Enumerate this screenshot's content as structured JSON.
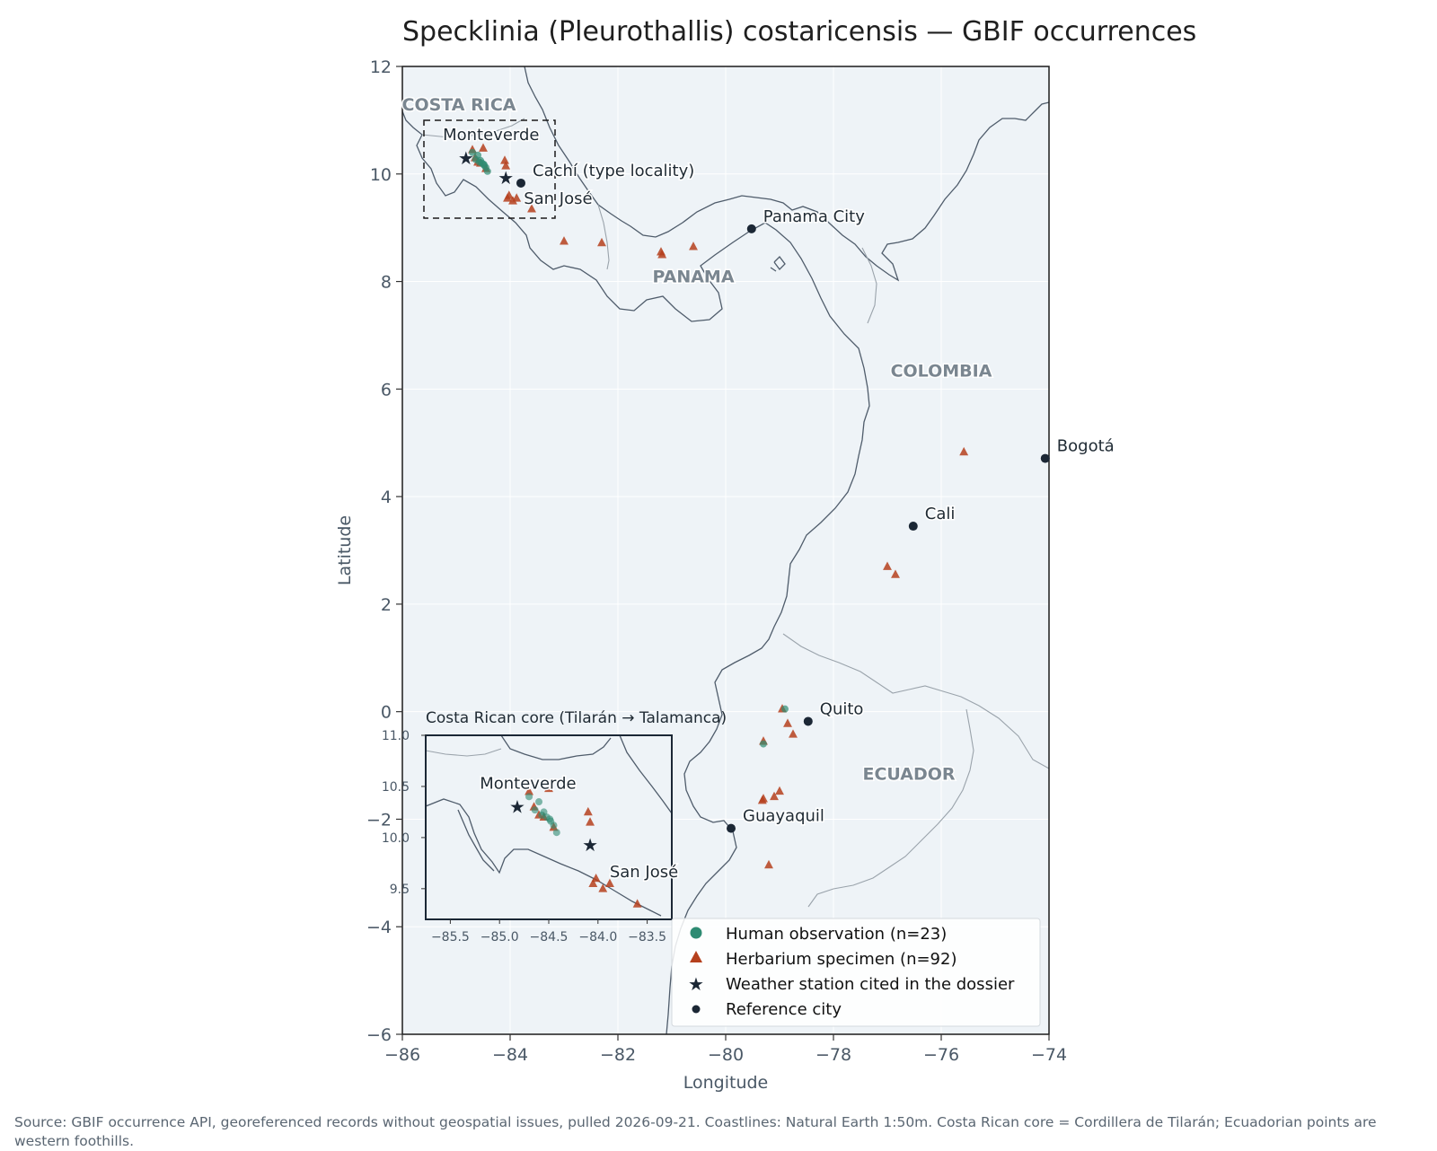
{
  "title": "Specklinia (Pleurothallis) costaricensis — GBIF occurrences",
  "source_note": "Source: GBIF occurrence API, georeferenced records without geospatial issues, pulled 2026-09-21. Coastlines: Natural Earth 1:50m. Costa Rican core = Cordillera de Tilarán; Ecuadorian points are western foothills.",
  "colors": {
    "background": "#eef3f7",
    "grid": "#ffffff",
    "coast": "#4f5c6b",
    "border": "#9aa3ab",
    "human": "#2e8b72",
    "herbarium": "#b5401d",
    "station": "#1b2735",
    "city": "#1b2735",
    "country_label": "#7a8690"
  },
  "map": {
    "xlabel": "Longitude",
    "ylabel": "Latitude",
    "xlim": [
      -86,
      -74
    ],
    "ylim": [
      -6,
      12
    ],
    "xticks": [
      -86,
      -84,
      -82,
      -80,
      -78,
      -76,
      -74
    ],
    "yticks": [
      -6,
      -4,
      -2,
      0,
      2,
      4,
      6,
      8,
      10,
      12
    ],
    "xtick_labels": [
      "−86",
      "−84",
      "−82",
      "−80",
      "−78",
      "−76",
      "−74"
    ],
    "ytick_labels": [
      "−6",
      "−4",
      "−2",
      "0",
      "2",
      "4",
      "6",
      "8",
      "10",
      "12"
    ],
    "grid": true
  },
  "countries": [
    {
      "name": "COSTA RICA",
      "lon": -84.95,
      "lat": 11.3
    },
    {
      "name": "PANAMA",
      "lon": -80.6,
      "lat": 8.1
    },
    {
      "name": "COLOMBIA",
      "lon": -76.0,
      "lat": 6.35
    },
    {
      "name": "ECUADOR",
      "lon": -76.6,
      "lat": -1.15
    }
  ],
  "cities": [
    {
      "name": "Cachí (type locality)",
      "lon": -83.8,
      "lat": 9.83
    },
    {
      "name": "San José",
      "lon": -84.08,
      "lat": 9.93,
      "marker": false
    },
    {
      "name": "Panama City",
      "lon": -79.52,
      "lat": 8.98
    },
    {
      "name": "Bogotá",
      "lon": -74.07,
      "lat": 4.71
    },
    {
      "name": "Cali",
      "lon": -76.52,
      "lat": 3.45
    },
    {
      "name": "Quito",
      "lon": -78.47,
      "lat": -0.18
    },
    {
      "name": "Guayaquil",
      "lon": -79.9,
      "lat": -2.17
    }
  ],
  "stations": [
    {
      "name": "Monteverde",
      "lon": -84.82,
      "lat": 10.3
    },
    {
      "name": "San José",
      "lon": -84.08,
      "lat": 9.93
    }
  ],
  "human_observations": [
    [
      -84.64,
      10.27
    ],
    [
      -84.57,
      10.22
    ],
    [
      -84.49,
      10.18
    ],
    [
      -84.42,
      10.05
    ],
    [
      -84.6,
      10.35
    ],
    [
      -84.7,
      10.4
    ],
    [
      -84.55,
      10.25
    ],
    [
      -84.45,
      10.12
    ],
    [
      -78.9,
      0.05
    ],
    [
      -79.3,
      -0.6
    ],
    [
      -84.52,
      10.2
    ],
    [
      -84.48,
      10.16
    ]
  ],
  "herbarium_specimens": [
    [
      -84.7,
      10.45
    ],
    [
      -84.5,
      10.48
    ],
    [
      -84.65,
      10.3
    ],
    [
      -84.55,
      10.2
    ],
    [
      -84.45,
      10.1
    ],
    [
      -84.1,
      10.25
    ],
    [
      -84.08,
      10.15
    ],
    [
      -84.02,
      9.6
    ],
    [
      -83.95,
      9.5
    ],
    [
      -83.88,
      9.55
    ],
    [
      -83.6,
      9.35
    ],
    [
      -83.0,
      8.75
    ],
    [
      -82.3,
      8.72
    ],
    [
      -81.2,
      8.55
    ],
    [
      -81.18,
      8.5
    ],
    [
      -80.6,
      8.65
    ],
    [
      -75.58,
      4.83
    ],
    [
      -77.0,
      2.7
    ],
    [
      -76.85,
      2.55
    ],
    [
      -78.95,
      0.05
    ],
    [
      -78.85,
      -0.22
    ],
    [
      -78.75,
      -0.42
    ],
    [
      -79.3,
      -0.55
    ],
    [
      -79.3,
      -1.62
    ],
    [
      -79.1,
      -1.58
    ],
    [
      -79.0,
      -1.48
    ],
    [
      -79.2,
      -2.85
    ],
    [
      -84.6,
      10.22
    ],
    [
      -84.05,
      9.55
    ],
    [
      -79.32,
      -1.65
    ]
  ],
  "inset": {
    "title": "Costa Rican core (Tilarán → Talamanca)",
    "xlim": [
      -85.75,
      -83.25
    ],
    "ylim": [
      9.2,
      11.0
    ],
    "xticks": [
      -85.5,
      -85.0,
      -84.5,
      -84.0,
      -83.5
    ],
    "yticks": [
      9.5,
      10.0,
      10.5,
      11.0
    ],
    "xtick_labels": [
      "−85.5",
      "−85.0",
      "−84.5",
      "−84.0",
      "−83.5"
    ],
    "ytick_labels": [
      "9.5",
      "10.0",
      "10.5",
      "11.0"
    ],
    "labels": [
      {
        "name": "Monteverde",
        "lon": -84.82,
        "lat": 10.3
      },
      {
        "name": "San José",
        "lon": -84.08,
        "lat": 9.93
      }
    ]
  },
  "legend": {
    "position": "lower-right",
    "items": [
      {
        "label": "Human observation (n=23)",
        "marker": "circle"
      },
      {
        "label": "Herbarium specimen (n=92)",
        "marker": "triangle"
      },
      {
        "label": "Weather station cited in the dossier",
        "marker": "star"
      },
      {
        "label": "Reference city",
        "marker": "dot"
      }
    ]
  }
}
